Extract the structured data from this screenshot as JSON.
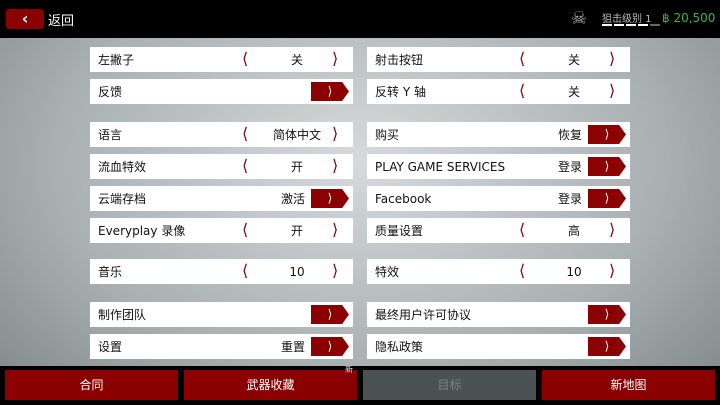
{
  "header": {
    "back_label": "返回",
    "rank_label": "狙击级别 1",
    "rank_progress": 0.8,
    "currency": "฿ 20,500",
    "accent": "#8b0000"
  },
  "left": [
    {
      "label": "左撇子",
      "type": "stepper",
      "value": "关"
    },
    {
      "label": "反馈",
      "type": "arrow",
      "value": ""
    },
    {
      "label": "语言",
      "type": "stepper",
      "value": "简体中文"
    },
    {
      "label": "流血特效",
      "type": "stepper",
      "value": "开"
    },
    {
      "label": "云端存档",
      "type": "arrow",
      "value": "激活"
    },
    {
      "label": "Everyplay 录像",
      "type": "stepper",
      "value": "开"
    },
    {
      "label": "音乐",
      "type": "stepper",
      "value": "10"
    },
    {
      "label": "制作团队",
      "type": "arrow",
      "value": ""
    },
    {
      "label": "设置",
      "type": "arrow",
      "value": "重置"
    }
  ],
  "right": [
    {
      "label": "射击按钮",
      "type": "stepper",
      "value": "关"
    },
    {
      "label": "反转 Y 轴",
      "type": "stepper",
      "value": "关"
    },
    {
      "label": "购买",
      "type": "arrow",
      "value": "恢复"
    },
    {
      "label": "PLAY GAME SERVICES",
      "type": "arrow",
      "value": "登录"
    },
    {
      "label": "Facebook",
      "type": "arrow",
      "value": "登录"
    },
    {
      "label": "质量设置",
      "type": "stepper",
      "value": "高"
    },
    {
      "label": "特效",
      "type": "stepper",
      "value": "10"
    },
    {
      "label": "最终用户许可协议",
      "type": "arrow",
      "value": ""
    },
    {
      "label": "隐私政策",
      "type": "arrow",
      "value": ""
    }
  ],
  "bottom": [
    {
      "label": "合同",
      "badge": "",
      "disabled": false
    },
    {
      "label": "武器收藏",
      "badge": "新",
      "disabled": false
    },
    {
      "label": "目标",
      "badge": "",
      "disabled": true
    },
    {
      "label": "新地图",
      "badge": "",
      "disabled": false
    }
  ]
}
